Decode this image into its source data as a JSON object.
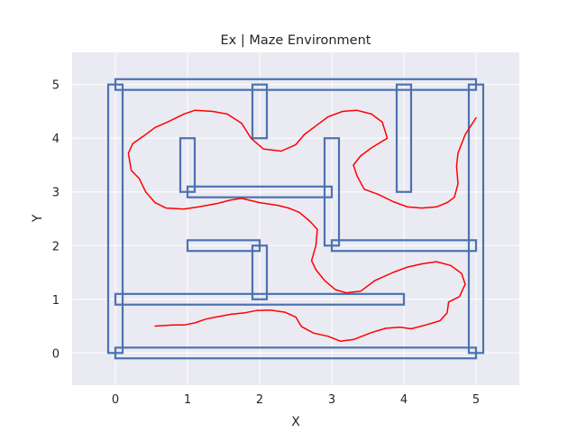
{
  "chart_data": {
    "type": "line",
    "title": "Ex | Maze Environment",
    "xlabel": "X",
    "ylabel": "Y",
    "xlim": [
      -0.6,
      5.6
    ],
    "ylim": [
      -0.6,
      5.6
    ],
    "xticks": [
      0,
      1,
      2,
      3,
      4,
      5
    ],
    "yticks": [
      0,
      1,
      2,
      3,
      4,
      5
    ],
    "grid": true,
    "colors": {
      "background": "#eaeaf2",
      "grid": "#ffffff",
      "wall": "#4c72b0",
      "path": "#ff0000"
    },
    "walls": [
      [
        -0.1,
        0.0,
        0.1,
        5.0
      ],
      [
        4.9,
        0.0,
        5.1,
        5.0
      ],
      [
        0.0,
        -0.1,
        5.0,
        0.1
      ],
      [
        0.0,
        4.9,
        5.0,
        5.1
      ],
      [
        0.0,
        0.9,
        4.0,
        1.1
      ],
      [
        1.0,
        2.9,
        3.0,
        3.1
      ],
      [
        3.0,
        1.9,
        5.0,
        2.1
      ],
      [
        1.0,
        1.9,
        2.0,
        2.1
      ],
      [
        1.9,
        1.0,
        2.1,
        2.0
      ],
      [
        0.9,
        3.0,
        1.1,
        4.0
      ],
      [
        1.9,
        4.0,
        2.1,
        5.0
      ],
      [
        2.9,
        2.0,
        3.1,
        4.0
      ],
      [
        3.9,
        3.0,
        4.1,
        5.0
      ]
    ],
    "series": [
      {
        "values": [
          [
            0.55,
            0.5
          ],
          [
            0.8,
            0.52
          ],
          [
            0.95,
            0.52
          ],
          [
            1.1,
            0.56
          ],
          [
            1.25,
            0.63
          ],
          [
            1.4,
            0.67
          ],
          [
            1.6,
            0.72
          ],
          [
            1.8,
            0.75
          ],
          [
            1.95,
            0.79
          ],
          [
            2.15,
            0.8
          ],
          [
            2.35,
            0.76
          ],
          [
            2.5,
            0.67
          ],
          [
            2.58,
            0.49
          ],
          [
            2.75,
            0.37
          ],
          [
            2.95,
            0.31
          ],
          [
            3.12,
            0.22
          ],
          [
            3.3,
            0.25
          ],
          [
            3.55,
            0.38
          ],
          [
            3.75,
            0.46
          ],
          [
            3.95,
            0.48
          ],
          [
            4.1,
            0.45
          ],
          [
            4.3,
            0.52
          ],
          [
            4.5,
            0.6
          ],
          [
            4.6,
            0.75
          ],
          [
            4.62,
            0.95
          ],
          [
            4.77,
            1.05
          ],
          [
            4.85,
            1.28
          ],
          [
            4.8,
            1.48
          ],
          [
            4.65,
            1.63
          ],
          [
            4.45,
            1.7
          ],
          [
            4.25,
            1.66
          ],
          [
            4.05,
            1.6
          ],
          [
            3.85,
            1.5
          ],
          [
            3.6,
            1.35
          ],
          [
            3.4,
            1.15
          ],
          [
            3.2,
            1.12
          ],
          [
            3.05,
            1.18
          ],
          [
            2.9,
            1.35
          ],
          [
            2.78,
            1.55
          ],
          [
            2.72,
            1.72
          ],
          [
            2.78,
            2.0
          ],
          [
            2.8,
            2.3
          ],
          [
            2.7,
            2.45
          ],
          [
            2.55,
            2.62
          ],
          [
            2.4,
            2.7
          ],
          [
            2.25,
            2.75
          ],
          [
            2.0,
            2.8
          ],
          [
            1.75,
            2.88
          ],
          [
            1.6,
            2.85
          ],
          [
            1.4,
            2.78
          ],
          [
            1.15,
            2.72
          ],
          [
            0.95,
            2.68
          ],
          [
            0.7,
            2.7
          ],
          [
            0.55,
            2.8
          ],
          [
            0.42,
            3.0
          ],
          [
            0.33,
            3.25
          ],
          [
            0.22,
            3.4
          ],
          [
            0.18,
            3.72
          ],
          [
            0.24,
            3.9
          ],
          [
            0.4,
            4.05
          ],
          [
            0.55,
            4.2
          ],
          [
            0.72,
            4.3
          ],
          [
            0.95,
            4.45
          ],
          [
            1.1,
            4.52
          ],
          [
            1.35,
            4.5
          ],
          [
            1.55,
            4.45
          ],
          [
            1.75,
            4.28
          ],
          [
            1.88,
            4.0
          ],
          [
            2.05,
            3.8
          ],
          [
            2.3,
            3.76
          ],
          [
            2.5,
            3.88
          ],
          [
            2.62,
            4.07
          ],
          [
            2.8,
            4.25
          ],
          [
            2.95,
            4.4
          ],
          [
            3.15,
            4.5
          ],
          [
            3.35,
            4.52
          ],
          [
            3.55,
            4.45
          ],
          [
            3.7,
            4.3
          ],
          [
            3.77,
            4.0
          ],
          [
            3.55,
            3.82
          ],
          [
            3.4,
            3.67
          ],
          [
            3.3,
            3.5
          ],
          [
            3.35,
            3.3
          ],
          [
            3.45,
            3.05
          ],
          [
            3.65,
            2.95
          ],
          [
            3.85,
            2.82
          ],
          [
            4.05,
            2.72
          ],
          [
            4.25,
            2.7
          ],
          [
            4.45,
            2.72
          ],
          [
            4.6,
            2.8
          ],
          [
            4.7,
            2.9
          ],
          [
            4.75,
            3.15
          ],
          [
            4.73,
            3.48
          ],
          [
            4.75,
            3.72
          ],
          [
            4.85,
            4.07
          ],
          [
            5.0,
            4.38
          ]
        ]
      }
    ]
  }
}
